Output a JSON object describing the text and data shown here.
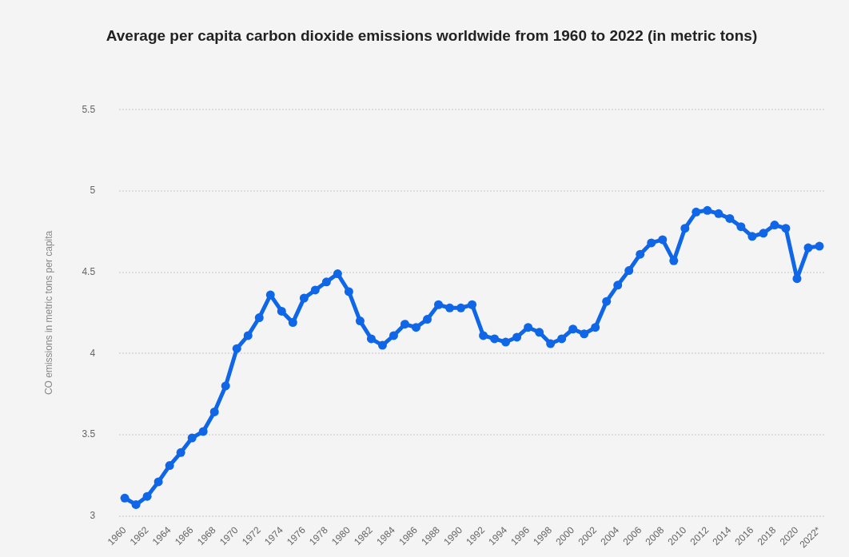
{
  "chart_data": {
    "type": "line",
    "title": "Average per capita carbon dioxide emissions worldwide from 1960 to 2022 (in metric tons)",
    "ylabel": "CO emissions in metric tons per capita",
    "categories": [
      "1960",
      null,
      "1962",
      null,
      "1964",
      null,
      "1966",
      null,
      "1968",
      null,
      "1970",
      null,
      "1972",
      null,
      "1974",
      null,
      "1976",
      null,
      "1978",
      null,
      "1980",
      null,
      "1982",
      null,
      "1984",
      null,
      "1986",
      null,
      "1988",
      null,
      "1990",
      null,
      "1992",
      null,
      "1994",
      null,
      "1996",
      null,
      "1998",
      null,
      "2000",
      null,
      "2002",
      null,
      "2004",
      null,
      "2006",
      null,
      "2008",
      null,
      "2010",
      null,
      "2012",
      null,
      "2014",
      null,
      "2016",
      null,
      "2018",
      null,
      "2020",
      null,
      "2022*"
    ],
    "series": [
      {
        "color": "#0f66e6",
        "values": [
          3.11,
          3.07,
          3.12,
          3.21,
          3.31,
          3.39,
          3.48,
          3.52,
          3.64,
          3.8,
          4.03,
          4.11,
          4.22,
          4.36,
          4.26,
          4.19,
          4.34,
          4.39,
          4.44,
          4.49,
          4.38,
          4.2,
          4.09,
          4.05,
          4.11,
          4.18,
          4.16,
          4.21,
          4.3,
          4.28,
          4.28,
          4.3,
          4.11,
          4.09,
          4.07,
          4.1,
          4.16,
          4.13,
          4.06,
          4.09,
          4.15,
          4.12,
          4.16,
          4.32,
          4.42,
          4.51,
          4.61,
          4.68,
          4.7,
          4.57,
          4.77,
          4.87,
          4.88,
          4.86,
          4.83,
          4.78,
          4.72,
          4.74,
          4.79,
          4.77,
          4.46,
          4.65,
          4.66
        ]
      }
    ],
    "ylim": [
      3,
      5.5
    ],
    "yticks": [
      3,
      3.5,
      4,
      4.5,
      5,
      5.5
    ],
    "grid": "y",
    "marker": "circle",
    "line_style": "solid"
  }
}
